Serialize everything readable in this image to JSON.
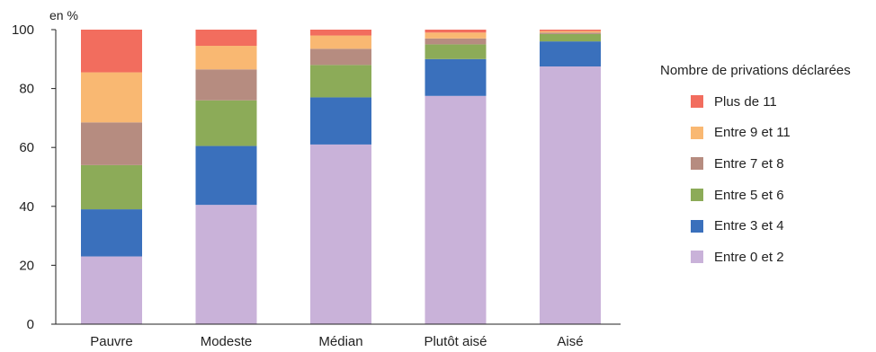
{
  "chart_data": {
    "type": "bar",
    "stacked": true,
    "unit_label": "en %",
    "categories": [
      "Pauvre",
      "Modeste",
      "Médian",
      "Plutôt aisé",
      "Aisé"
    ],
    "ylim": [
      0,
      100
    ],
    "yticks": [
      0,
      20,
      40,
      60,
      80,
      100
    ],
    "grid": false,
    "legend_title": "Nombre de privations déclarées",
    "legend_position": "right",
    "series": [
      {
        "name": "Entre 0 et 2",
        "color": "#c9b2d9",
        "values": [
          23,
          40.5,
          61,
          77.5,
          87.5
        ]
      },
      {
        "name": "Entre 3 et 4",
        "color": "#3a70bc",
        "values": [
          16,
          20,
          16,
          12.5,
          8.5
        ]
      },
      {
        "name": "Entre 5 et 6",
        "color": "#8cab58",
        "values": [
          15,
          15.5,
          11,
          5,
          2.5
        ]
      },
      {
        "name": "Entre 7 et 8",
        "color": "#b68c80",
        "values": [
          14.5,
          10.5,
          5.5,
          2,
          0.5
        ]
      },
      {
        "name": "Entre 9 et 11",
        "color": "#f9b872",
        "values": [
          17,
          8,
          4.5,
          2,
          0.5
        ]
      },
      {
        "name": "Plus de 11",
        "color": "#f26d5e",
        "values": [
          14.5,
          5.5,
          2,
          1,
          0.5
        ]
      }
    ]
  }
}
